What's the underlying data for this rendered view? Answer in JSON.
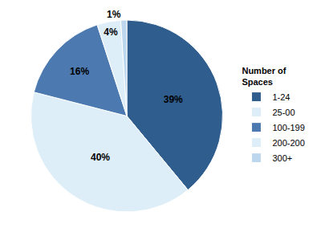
{
  "chart_data": {
    "type": "pie",
    "categories": [
      "1-24",
      "25-00",
      "100-199",
      "200-200",
      "300+"
    ],
    "values": [
      39,
      40,
      16,
      4,
      1
    ],
    "value_labels": [
      "39%",
      "40%",
      "16%",
      "4%",
      "1%"
    ],
    "colors": [
      "#2E5D8E",
      "#DDEEF8",
      "#4C7AB0",
      "#DDEEF8",
      "#BDD7EE"
    ],
    "legend_title": "Number of\nSpaces",
    "legend": "right",
    "data_labels": true
  }
}
